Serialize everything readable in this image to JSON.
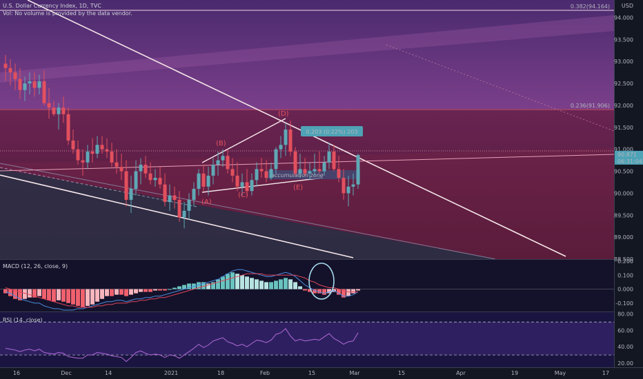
{
  "header": {
    "symbol": "U.S. Dollar Currency Index, 1D, TVC",
    "volume_note": "Vol: No volume is provided by the data vendor.",
    "currency": "USD"
  },
  "colors": {
    "background": "#131722",
    "up": "#5fa8b5",
    "down": "#e2505e",
    "accent_line": "#f5e6e9",
    "wave_label": "#e8525f",
    "fib_band_upper": "#7b3f8a",
    "fib_band_lower": "#6a1f3a",
    "price_tag": "#4fa3b6"
  },
  "chart_data": [
    {
      "type": "candlestick",
      "x": [
        "Nov 12",
        "Nov 13",
        "Nov 16",
        "Nov 17",
        "Nov 18",
        "Nov 19",
        "Nov 20",
        "Nov 23",
        "Nov 24",
        "Nov 25",
        "Nov 26",
        "Nov 27",
        "Nov 30",
        "Dec 1",
        "Dec 2",
        "Dec 3",
        "Dec 4",
        "Dec 7",
        "Dec 8",
        "Dec 9",
        "Dec 10",
        "Dec 11",
        "Dec 14",
        "Dec 15",
        "Dec 16",
        "Dec 17",
        "Dec 18",
        "Dec 21",
        "Dec 22",
        "Dec 23",
        "Dec 24",
        "Dec 28",
        "Dec 29",
        "Dec 30",
        "Dec 31",
        "Jan 4",
        "Jan 5",
        "Jan 6",
        "Jan 7",
        "Jan 8",
        "Jan 11",
        "Jan 12",
        "Jan 13",
        "Jan 14",
        "Jan 15",
        "Jan 18",
        "Jan 19",
        "Jan 20",
        "Jan 21",
        "Jan 22",
        "Jan 25",
        "Jan 26",
        "Jan 27",
        "Jan 28",
        "Jan 29",
        "Feb 1",
        "Feb 2",
        "Feb 3",
        "Feb 4",
        "Feb 5",
        "Feb 8",
        "Feb 9",
        "Feb 10",
        "Feb 11",
        "Feb 12",
        "Feb 15",
        "Feb 16",
        "Feb 17",
        "Feb 18",
        "Feb 19",
        "Feb 22",
        "Feb 23",
        "Feb 24",
        "Feb 25"
      ],
      "open": [
        92.95,
        92.85,
        92.75,
        92.6,
        92.35,
        92.5,
        92.55,
        92.4,
        92.55,
        92.05,
        91.95,
        91.8,
        91.95,
        91.8,
        91.2,
        91.0,
        90.75,
        90.7,
        90.95,
        90.9,
        91.1,
        91.0,
        90.95,
        90.7,
        90.6,
        90.5,
        89.85,
        90.1,
        90.5,
        90.65,
        90.45,
        90.3,
        90.35,
        90.2,
        89.8,
        89.95,
        89.85,
        89.45,
        89.6,
        89.85,
        90.1,
        90.45,
        90.15,
        90.4,
        90.65,
        90.75,
        90.85,
        90.55,
        90.4,
        90.15,
        90.25,
        90.05,
        90.3,
        90.55,
        90.5,
        90.35,
        90.55,
        91.0,
        91.1,
        91.45,
        90.95,
        90.45,
        90.55,
        90.45,
        90.5,
        90.55,
        90.5,
        90.7,
        90.95,
        90.55,
        90.35,
        90.0,
        90.15,
        90.2
      ],
      "high": [
        93.15,
        93.05,
        92.95,
        92.85,
        92.65,
        92.75,
        92.75,
        92.7,
        92.8,
        92.4,
        92.1,
        92.05,
        92.2,
        91.95,
        91.45,
        91.2,
        91.0,
        91.1,
        91.25,
        91.3,
        91.3,
        91.25,
        91.15,
        91.0,
        90.9,
        90.75,
        90.4,
        90.75,
        90.8,
        90.85,
        90.7,
        90.55,
        90.6,
        90.45,
        90.2,
        90.15,
        90.05,
        89.8,
        90.0,
        90.25,
        90.55,
        90.65,
        90.6,
        90.8,
        90.95,
        91.0,
        91.0,
        90.8,
        90.7,
        90.45,
        90.55,
        90.45,
        90.7,
        90.8,
        90.75,
        90.7,
        91.05,
        91.3,
        91.6,
        91.65,
        91.05,
        90.9,
        90.8,
        90.7,
        90.9,
        90.95,
        90.85,
        91.15,
        91.1,
        90.85,
        90.55,
        90.4,
        90.45,
        90.9
      ],
      "low": [
        92.55,
        92.45,
        92.35,
        92.15,
        92.1,
        92.25,
        92.2,
        92.25,
        92.0,
        91.7,
        91.75,
        91.45,
        91.6,
        91.1,
        90.9,
        90.65,
        90.4,
        90.55,
        90.7,
        90.8,
        90.9,
        90.8,
        90.6,
        90.45,
        90.3,
        89.7,
        89.55,
        89.95,
        90.2,
        90.35,
        90.2,
        90.15,
        90.1,
        89.7,
        89.6,
        89.65,
        89.35,
        89.2,
        89.4,
        89.7,
        89.95,
        90.05,
        89.95,
        90.2,
        90.4,
        90.6,
        90.45,
        90.25,
        90.05,
        89.95,
        89.95,
        89.95,
        90.15,
        90.35,
        90.25,
        90.3,
        90.45,
        90.8,
        90.85,
        90.85,
        90.4,
        90.35,
        90.4,
        90.3,
        90.4,
        90.45,
        90.4,
        90.55,
        90.5,
        90.25,
        89.85,
        89.7,
        89.95,
        90.1
      ],
      "close": [
        92.85,
        92.75,
        92.6,
        92.35,
        92.5,
        92.55,
        92.4,
        92.55,
        92.05,
        91.95,
        91.8,
        91.95,
        91.8,
        91.2,
        91.0,
        90.75,
        90.7,
        90.95,
        90.9,
        91.1,
        91.0,
        90.95,
        90.7,
        90.6,
        90.5,
        89.85,
        90.1,
        90.5,
        90.65,
        90.45,
        90.3,
        90.35,
        90.2,
        89.8,
        89.95,
        89.85,
        89.45,
        89.6,
        89.85,
        90.1,
        90.45,
        90.15,
        90.4,
        90.65,
        90.75,
        90.85,
        90.55,
        90.4,
        90.15,
        90.25,
        90.05,
        90.3,
        90.55,
        90.5,
        90.35,
        90.55,
        91.0,
        91.1,
        91.45,
        90.95,
        90.45,
        90.55,
        90.45,
        90.5,
        90.55,
        90.5,
        90.7,
        90.95,
        90.55,
        90.35,
        90.0,
        90.15,
        90.2,
        90.87
      ],
      "xticks": [
        "16",
        "Dec",
        "14",
        "2021",
        "18",
        "Feb",
        "15",
        "Mar",
        "15",
        "Apr",
        "19",
        "May",
        "17"
      ],
      "yticks": [
        "94.000",
        "93.500",
        "93.000",
        "92.500",
        "92.000",
        "91.500",
        "91.000",
        "90.500",
        "90.000",
        "89.500",
        "89.000",
        "88.500"
      ],
      "ylim": [
        88.5,
        94.4
      ],
      "last_price": "90.871",
      "countdown": "06:31:04",
      "fib_levels": [
        {
          "label": "0.382(94.164)",
          "value": 94.164
        },
        {
          "label": "0.236(91.906)",
          "value": 91.906
        }
      ],
      "annotations": {
        "waves": [
          "(A)",
          "(B)",
          "(C)",
          "(D)",
          "(E)"
        ],
        "zone": "accumulation zone",
        "measure": "0.203 (0.22%) 203"
      }
    },
    {
      "type": "bar",
      "title": "MACD (12, 26, close, 9)",
      "yticks": [
        "0.200",
        "0.100",
        "0.000",
        "-0.100"
      ],
      "ylim": [
        -0.16,
        0.21
      ],
      "histogram": [
        -0.03,
        -0.05,
        -0.07,
        -0.08,
        -0.07,
        -0.06,
        -0.06,
        -0.05,
        -0.07,
        -0.08,
        -0.09,
        -0.08,
        -0.09,
        -0.1,
        -0.11,
        -0.12,
        -0.13,
        -0.12,
        -0.11,
        -0.09,
        -0.07,
        -0.05,
        -0.05,
        -0.04,
        -0.04,
        -0.05,
        -0.04,
        -0.03,
        -0.02,
        -0.02,
        -0.02,
        -0.01,
        -0.01,
        -0.01,
        0.0,
        0.01,
        0.02,
        0.03,
        0.04,
        0.04,
        0.05,
        0.05,
        0.04,
        0.05,
        0.07,
        0.09,
        0.11,
        0.12,
        0.11,
        0.1,
        0.09,
        0.08,
        0.07,
        0.06,
        0.05,
        0.05,
        0.06,
        0.07,
        0.08,
        0.07,
        0.05,
        0.02,
        -0.01,
        -0.02,
        -0.03,
        -0.03,
        -0.04,
        -0.03,
        -0.02,
        -0.04,
        -0.06,
        -0.05,
        -0.03,
        -0.01
      ],
      "macd": [
        -0.02,
        -0.03,
        -0.05,
        -0.07,
        -0.08,
        -0.09,
        -0.1,
        -0.1,
        -0.12,
        -0.13,
        -0.14,
        -0.14,
        -0.15,
        -0.15,
        -0.15,
        -0.14,
        -0.14,
        -0.13,
        -0.12,
        -0.11,
        -0.1,
        -0.09,
        -0.09,
        -0.08,
        -0.08,
        -0.09,
        -0.08,
        -0.07,
        -0.07,
        -0.06,
        -0.06,
        -0.05,
        -0.05,
        -0.04,
        -0.03,
        -0.02,
        -0.01,
        0.0,
        0.01,
        0.02,
        0.03,
        0.04,
        0.05,
        0.06,
        0.07,
        0.09,
        0.11,
        0.13,
        0.14,
        0.14,
        0.13,
        0.12,
        0.11,
        0.1,
        0.09,
        0.09,
        0.1,
        0.11,
        0.12,
        0.11,
        0.09,
        0.06,
        0.03,
        0.01,
        -0.01,
        -0.02,
        -0.03,
        -0.02,
        -0.01,
        -0.03,
        -0.05,
        -0.05,
        -0.04,
        -0.02
      ],
      "signal": [
        0.01,
        0.0,
        -0.01,
        -0.02,
        -0.03,
        -0.04,
        -0.05,
        -0.06,
        -0.07,
        -0.08,
        -0.09,
        -0.1,
        -0.11,
        -0.12,
        -0.12,
        -0.13,
        -0.13,
        -0.13,
        -0.13,
        -0.12,
        -0.12,
        -0.11,
        -0.11,
        -0.1,
        -0.1,
        -0.1,
        -0.09,
        -0.09,
        -0.08,
        -0.08,
        -0.07,
        -0.07,
        -0.06,
        -0.06,
        -0.05,
        -0.04,
        -0.03,
        -0.02,
        -0.01,
        0.0,
        0.01,
        0.02,
        0.03,
        0.04,
        0.05,
        0.06,
        0.07,
        0.08,
        0.09,
        0.1,
        0.11,
        0.11,
        0.11,
        0.11,
        0.1,
        0.1,
        0.1,
        0.1,
        0.1,
        0.1,
        0.1,
        0.09,
        0.08,
        0.06,
        0.05,
        0.03,
        0.02,
        0.01,
        0.01,
        0.0,
        -0.01,
        -0.02,
        -0.02,
        -0.02
      ]
    },
    {
      "type": "line",
      "title": "RSI (14, close)",
      "yticks": [
        "80.00",
        "60.00",
        "40.00",
        "20.00"
      ],
      "ylim": [
        15,
        82
      ],
      "bands": [
        70,
        30
      ],
      "values": [
        38,
        37,
        36,
        34,
        36,
        37,
        35,
        37,
        33,
        32,
        31,
        33,
        32,
        28,
        27,
        26,
        26,
        30,
        30,
        33,
        32,
        31,
        29,
        28,
        27,
        22,
        27,
        33,
        35,
        32,
        30,
        31,
        30,
        27,
        30,
        29,
        26,
        30,
        34,
        38,
        43,
        39,
        42,
        47,
        49,
        51,
        46,
        44,
        41,
        43,
        40,
        44,
        48,
        47,
        45,
        48,
        55,
        57,
        62,
        53,
        47,
        49,
        47,
        48,
        49,
        48,
        52,
        56,
        50,
        47,
        43,
        46,
        47,
        57
      ]
    }
  ]
}
